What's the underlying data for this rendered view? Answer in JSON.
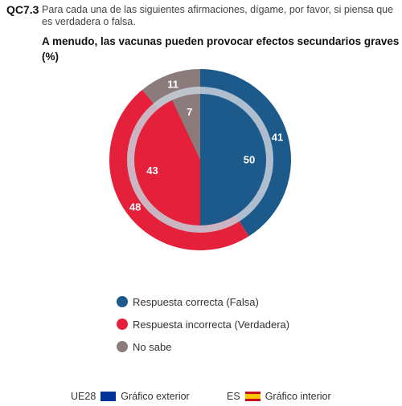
{
  "header": {
    "code": "QC7.3",
    "question": "Para cada una de las siguientes afirmaciones, dígame, por favor, si piensa que es verdadera o falsa.",
    "title_line1": "A menudo, las vacunas pueden provocar efectos secundarios graves",
    "title_line2": "(%)"
  },
  "colors": {
    "correct": "#1d5a8c",
    "incorrect": "#e5203a",
    "dontknow": "#8c7b7b",
    "ring": "#c8d0da"
  },
  "chart_data": {
    "type": "pie",
    "categories": [
      "Respuesta correcta (Falsa)",
      "Respuesta incorrecta (Verdadera)",
      "No sabe"
    ],
    "series": [
      {
        "name": "UE28",
        "values": [
          41,
          48,
          11
        ]
      },
      {
        "name": "ES",
        "values": [
          50,
          43,
          7
        ]
      }
    ]
  },
  "legend": [
    {
      "label": "Respuesta correcta (Falsa)",
      "color": "#1d5a8c"
    },
    {
      "label": "Respuesta incorrecta (Verdadera)",
      "color": "#e5203a"
    },
    {
      "label": "No sabe",
      "color": "#8c7b7b"
    }
  ],
  "footer": {
    "outer_code": "UE28",
    "outer_label": "Gráfico exterior",
    "inner_code": "ES",
    "inner_label": "Gráfico interior"
  }
}
